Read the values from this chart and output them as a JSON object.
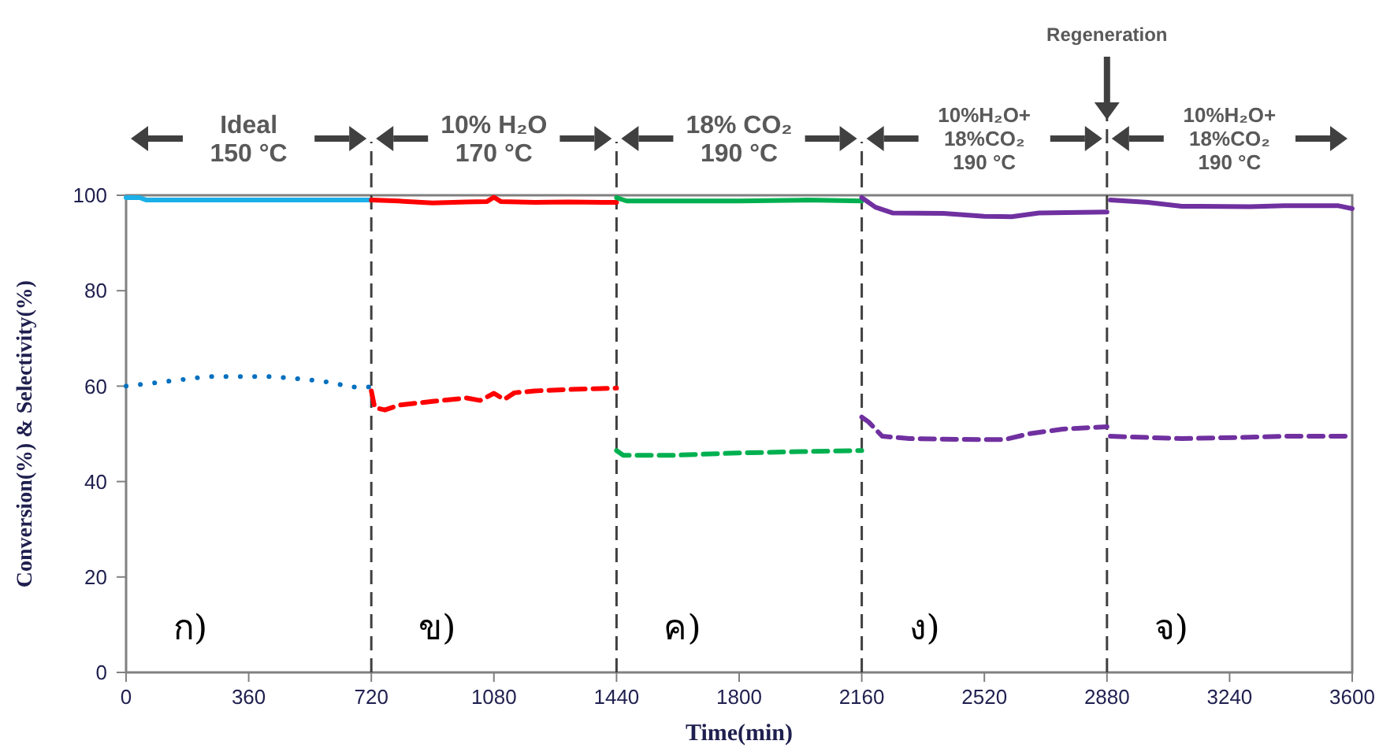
{
  "chart_data": {
    "type": "line",
    "xlabel": "Time(min)",
    "ylabel": "Conversion(%) & Selectivity(%)",
    "xlim": [
      0,
      3600
    ],
    "xticks": [
      0,
      360,
      720,
      1080,
      1440,
      1800,
      2160,
      2520,
      2880,
      3240,
      3600
    ],
    "ylim": [
      0,
      100
    ],
    "yticks": [
      0,
      20,
      40,
      60,
      80,
      100
    ],
    "series": [
      {
        "line_style": "solid",
        "color": "#1cb0e8",
        "x": [
          0,
          40,
          60,
          200,
          400,
          600,
          720
        ],
        "values": [
          99.5,
          99.5,
          99,
          99,
          99,
          99,
          99
        ]
      },
      {
        "line_style": "dotted",
        "color": "#0070c0",
        "x": [
          0,
          60,
          120,
          180,
          240,
          300,
          360,
          420,
          480,
          540,
          600,
          660,
          720
        ],
        "values": [
          60,
          60.5,
          61,
          61.5,
          62,
          62,
          62,
          62,
          61.7,
          61.3,
          60.8,
          59.8,
          59.8
        ]
      },
      {
        "line_style": "solid",
        "color": "#ff0000",
        "x": [
          720,
          800,
          900,
          1000,
          1060,
          1080,
          1100,
          1200,
          1300,
          1440
        ],
        "values": [
          99,
          98.8,
          98.4,
          98.6,
          98.7,
          99.6,
          98.7,
          98.5,
          98.6,
          98.5
        ]
      },
      {
        "line_style": "dashed",
        "color": "#ff0000",
        "x": [
          720,
          730,
          760,
          800,
          900,
          1000,
          1040,
          1080,
          1110,
          1140,
          1200,
          1300,
          1440
        ],
        "values": [
          59,
          55.5,
          55,
          56,
          56.8,
          57.5,
          57,
          58.5,
          57.2,
          58.6,
          59,
          59.3,
          59.6
        ]
      },
      {
        "line_style": "solid",
        "color": "#00b050",
        "x": [
          1440,
          1470,
          1600,
          1800,
          2000,
          2160
        ],
        "values": [
          99.5,
          98.8,
          98.8,
          98.8,
          99,
          98.8
        ]
      },
      {
        "line_style": "dashed",
        "color": "#00b050",
        "x": [
          1440,
          1460,
          1600,
          1800,
          2000,
          2160
        ],
        "values": [
          46.5,
          45.5,
          45.5,
          46,
          46.3,
          46.5
        ]
      },
      {
        "line_style": "solid",
        "color": "#7030a0",
        "x": [
          2160,
          2200,
          2250,
          2400,
          2520,
          2600,
          2680,
          2880
        ],
        "values": [
          99.5,
          97.5,
          96.3,
          96.2,
          95.6,
          95.5,
          96.3,
          96.5
        ]
      },
      {
        "line_style": "dashed",
        "color": "#7030a0",
        "x": [
          2160,
          2180,
          2220,
          2300,
          2500,
          2580,
          2650,
          2750,
          2880
        ],
        "values": [
          53.5,
          52.5,
          49.5,
          49,
          48.8,
          48.8,
          50,
          51,
          51.5
        ]
      },
      {
        "line_style": "solid",
        "color": "#7030a0",
        "x": [
          2890,
          3000,
          3100,
          3300,
          3400,
          3560,
          3600
        ],
        "values": [
          99,
          98.5,
          97.7,
          97.6,
          97.8,
          97.8,
          97.2
        ]
      },
      {
        "line_style": "dashed",
        "color": "#7030a0",
        "x": [
          2890,
          3100,
          3300,
          3400,
          3600
        ],
        "values": [
          49.5,
          49,
          49.3,
          49.5,
          49.5
        ]
      }
    ],
    "ref_lines": [
      {
        "axis": "x",
        "value": 720,
        "line_style": "dashed",
        "color": "#404040"
      },
      {
        "axis": "x",
        "value": 1440,
        "line_style": "dashed",
        "color": "#404040"
      },
      {
        "axis": "x",
        "value": 2160,
        "line_style": "dashed",
        "color": "#404040"
      },
      {
        "axis": "x",
        "value": 2880,
        "line_style": "dashed",
        "color": "#404040"
      }
    ],
    "annotations": [
      "Ideal\n150 °C",
      "10% H₂O\n170 °C",
      "18% CO₂\n190 °C",
      "10%H₂O+\n18%CO₂\n190 °C",
      "10%H₂O+\n18%CO₂\n190 °C",
      "Regeneration",
      "ก)",
      "ข)",
      "ค)",
      "ง)",
      "จ)"
    ]
  }
}
